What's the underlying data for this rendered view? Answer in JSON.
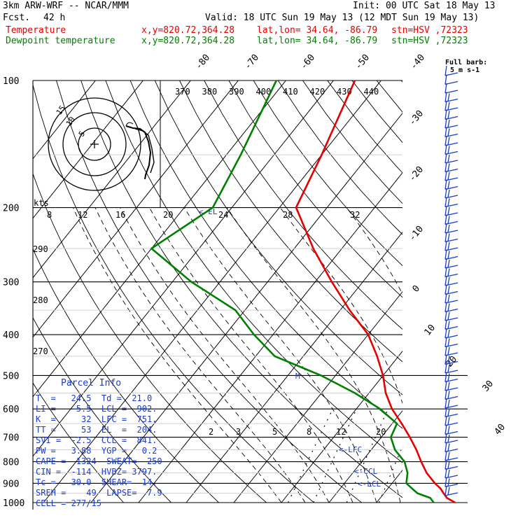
{
  "header": {
    "model": "3km ARW-WRF -- NCAR/MMM",
    "init": "Init: 00 UTC Sat 18 May 13",
    "fcst_label": "Fcst.",
    "fcst_value": "42 h",
    "valid": "Valid: 18 UTC Sun 19 May 13 (12 MDT Sun 19 May 13)",
    "temp_label": "Temperature",
    "dew_label": "Dewpoint temperature",
    "xy": "x,y=820.72,364.28",
    "latlon": "lat,lon= 34.64, -86.79",
    "stn": "stn=HSV ,72323"
  },
  "colors": {
    "temperature": "#e60000",
    "dewpoint": "#008000",
    "barbs": "#1a3ccc",
    "text": "#1a3ccc"
  },
  "barb_label": {
    "line1": "Full barb:",
    "line2": "5 m s-1"
  },
  "hodograph": {
    "units_label": "kts",
    "ring_labels": [
      "5",
      "10",
      "15"
    ]
  },
  "el_marker": "<-EL",
  "lfc_marker": "<-LFC",
  "ccl_marker": "<-CCL",
  "lcl_marker": "<-LCL",
  "tropopause_marker": "M",
  "parcel_info": {
    "title": "Parcel Info",
    "rows": [
      "T  =   24.5  Td =  21.0",
      "LI =   -5.5  LCL =  902.",
      "K  =     32  LFC =  751.",
      "TT =     53  EL  =  204.",
      "SVI =  -2.5  CCL =  841.",
      "PW =   3.88  YGP =   0.2",
      "CAPE =  1324  SWEAT=  250",
      "CIN =  -114  HVBZ= 3797.",
      "Tc =   30.0  SHEAR=  14.",
      "SREH =    49  LAPSE=  7.9",
      "CELL = 277/15"
    ]
  },
  "chart_data": {
    "type": "line",
    "title": "",
    "ylabel": "",
    "xlabel": "",
    "y_scale": "log-pressure",
    "ylim": [
      1000,
      100
    ],
    "pressure_levels": [
      100,
      200,
      300,
      400,
      500,
      600,
      700,
      800,
      900,
      1000
    ],
    "isotherm_labels": [
      "-80",
      "-70",
      "-60",
      "-50",
      "-40",
      "-30",
      "-20",
      "-10",
      "0",
      "10",
      "20",
      "30",
      "40"
    ],
    "theta_labels": [
      "370",
      "380",
      "390",
      "400",
      "410",
      "420",
      "430",
      "440"
    ],
    "theta_e_labels": [
      "8",
      "12",
      "16",
      "20",
      "24",
      "28",
      "32"
    ],
    "dry_adiabat_labels": [
      "290",
      "280",
      "270"
    ],
    "mixing_ratio_labels": [
      "2",
      "3",
      "5",
      "8",
      "12",
      "20"
    ],
    "series": [
      {
        "name": "Temperature",
        "pressure": [
          1000,
          975,
          950,
          925,
          900,
          850,
          800,
          750,
          700,
          650,
          600,
          550,
          500,
          450,
          400,
          350,
          300,
          250,
          200,
          150,
          100
        ],
        "temperature": [
          26.5,
          24.0,
          22.5,
          21.0,
          19.0,
          15.5,
          12.5,
          9.5,
          6.0,
          2.0,
          -2.5,
          -6.5,
          -10.0,
          -14.5,
          -20.0,
          -28.0,
          -36.5,
          -46.0,
          -56.5,
          -60.0,
          -65.5
        ]
      },
      {
        "name": "Dewpoint temperature",
        "pressure": [
          1000,
          975,
          950,
          925,
          900,
          850,
          800,
          750,
          700,
          650,
          600,
          550,
          500,
          450,
          400,
          350,
          300,
          250,
          200,
          150,
          100
        ],
        "dewpoint": [
          22.0,
          20.5,
          17.0,
          15.0,
          13.0,
          11.5,
          9.0,
          5.0,
          2.0,
          1.0,
          -5.0,
          -13.0,
          -23.0,
          -36.0,
          -44.0,
          -52.0,
          -66.0,
          -80.0,
          -74.0,
          -77.0,
          -82.0
        ]
      }
    ]
  }
}
